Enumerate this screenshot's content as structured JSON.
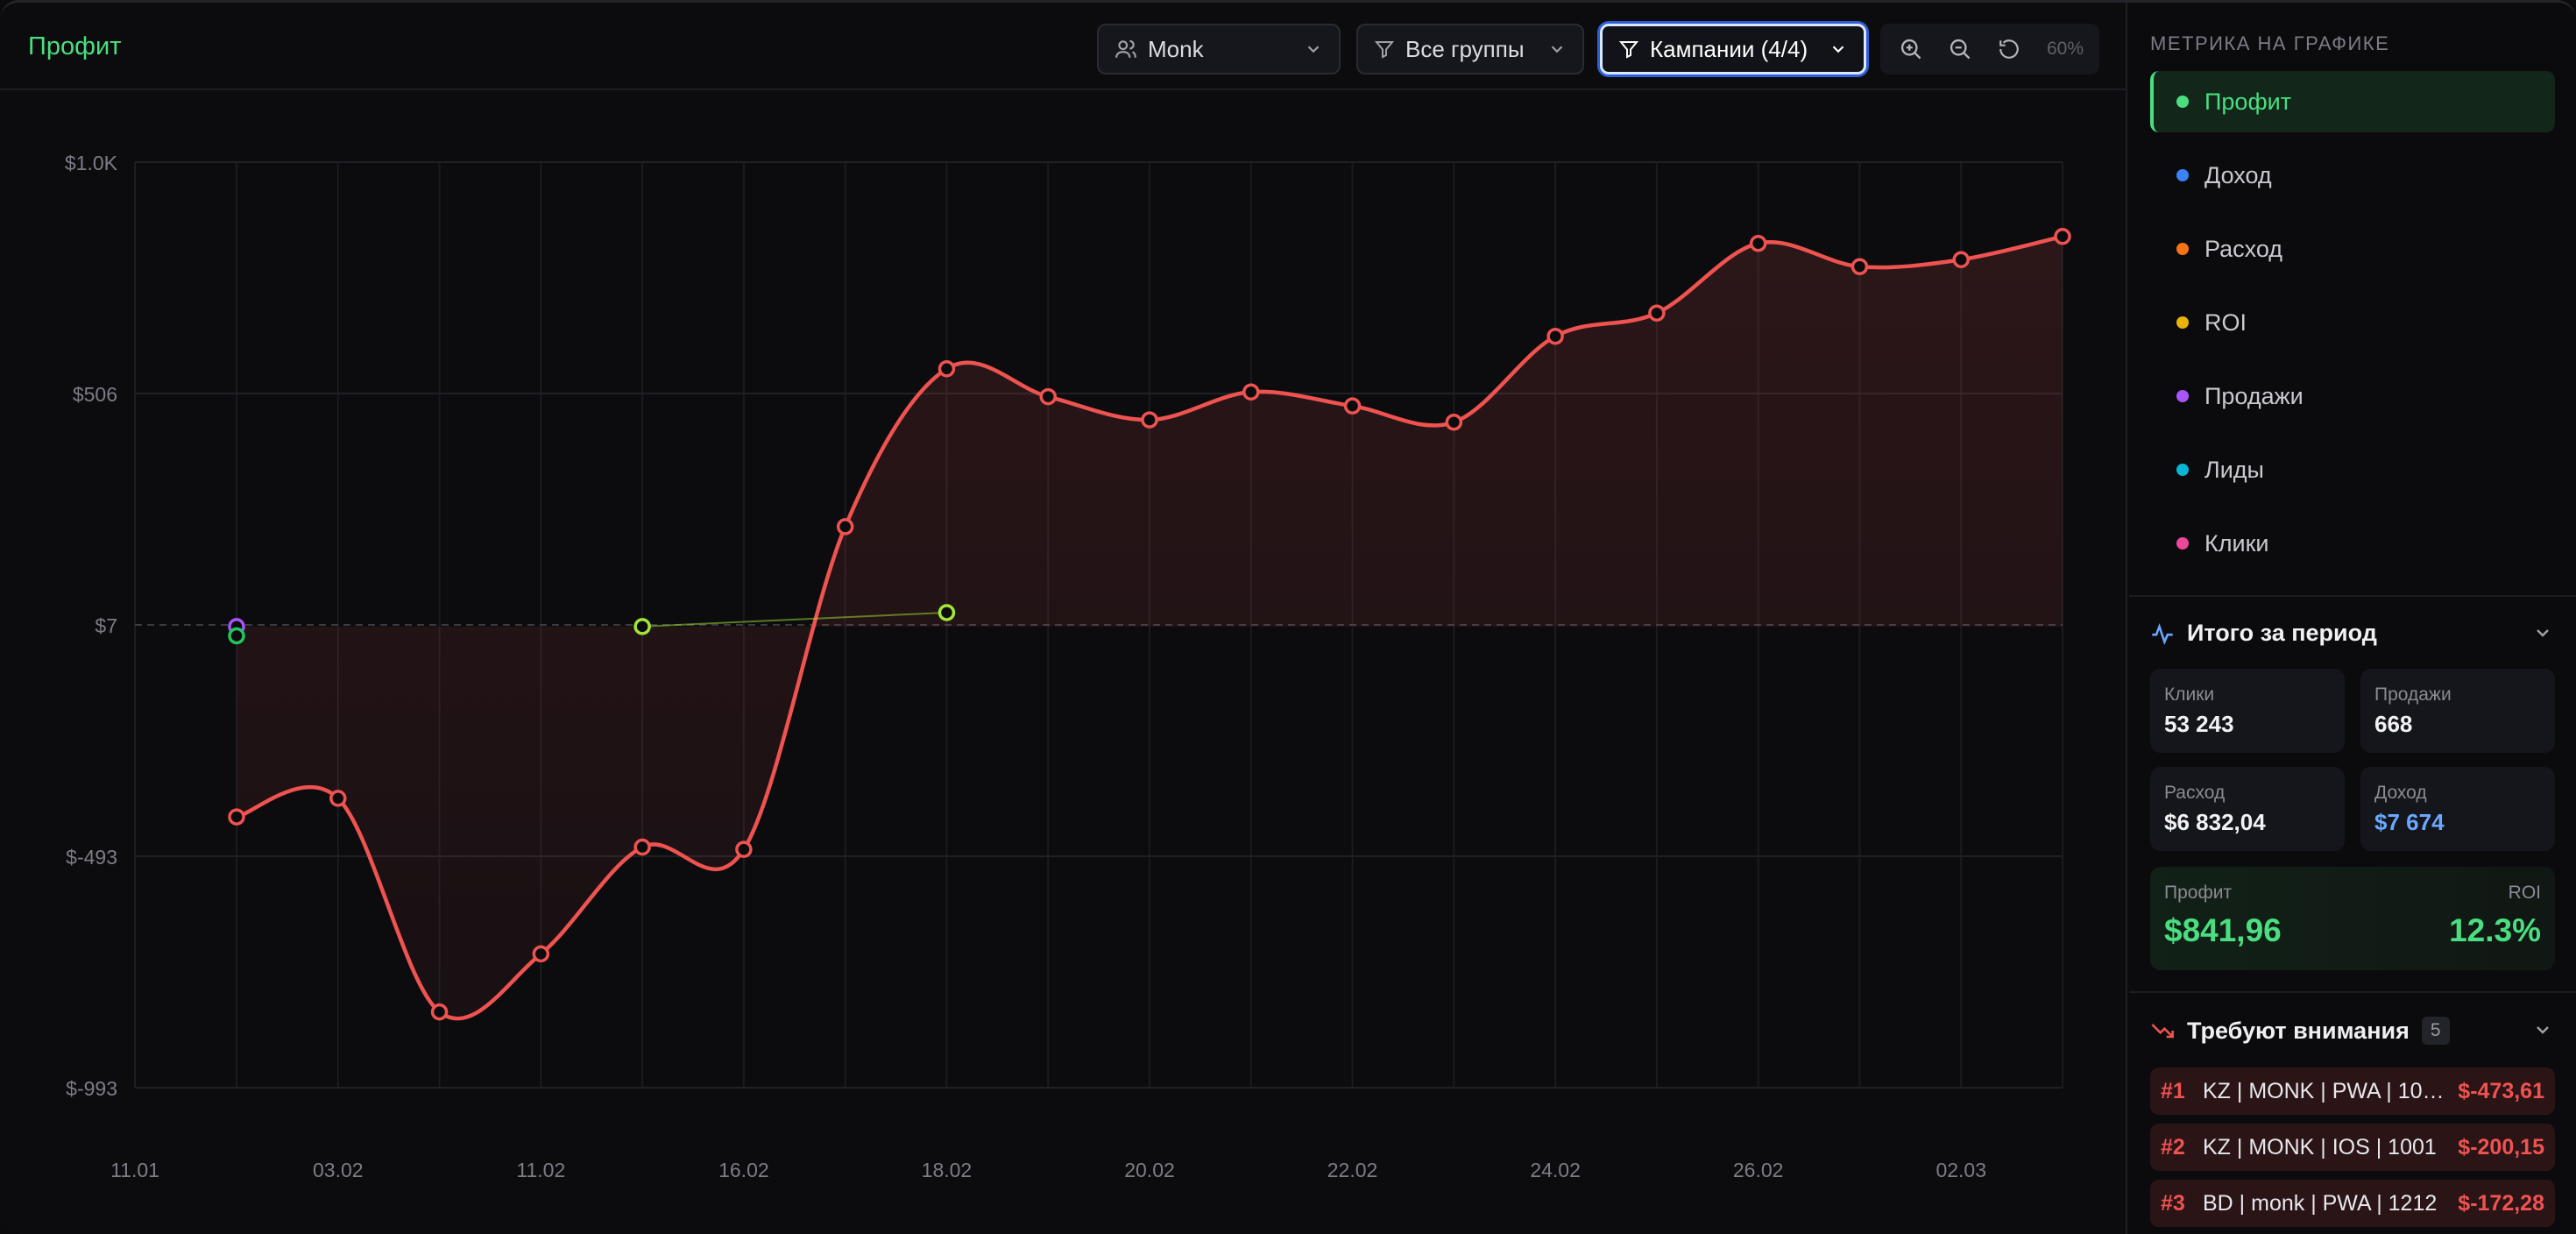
{
  "header": {
    "title": "Профит",
    "user_filter": "Monk",
    "group_filter": "Все группы",
    "campaign_filter": "Кампании (4/4)",
    "zoom_level": "60%"
  },
  "colors": {
    "profit": "#ef5350",
    "accent_green": "#4ade80",
    "blue": "#6aa8ff"
  },
  "chart_data": {
    "type": "line",
    "y_ticks": [
      "$1.0K",
      "$506",
      "$7",
      "$-493",
      "$-993"
    ],
    "x_ticks": [
      "11.01",
      "03.02",
      "11.02",
      "16.02",
      "18.02",
      "20.02",
      "22.02",
      "24.02",
      "26.02",
      "02.03"
    ],
    "ylim": [
      -993,
      1000
    ],
    "series": [
      {
        "color": "#ef5350",
        "values": [
          -410,
          -370,
          -830,
          -705,
          -475,
          -480,
          215,
          555,
          495,
          445,
          505,
          475,
          440,
          625,
          675,
          825,
          775,
          790,
          840
        ]
      },
      {
        "color": "#a3e635",
        "values": [
          null,
          null,
          null,
          null,
          0,
          null,
          null,
          30,
          null,
          null,
          null,
          null,
          null,
          null,
          null,
          null,
          null,
          null,
          null
        ]
      },
      {
        "color": "#a855f7",
        "values": [
          0,
          null,
          null,
          null,
          null,
          null,
          null,
          null,
          null,
          null,
          null,
          null,
          null,
          null,
          null,
          null,
          null,
          null,
          null
        ]
      },
      {
        "color": "#22c55e",
        "values": [
          -20,
          null,
          null,
          null,
          null,
          null,
          null,
          null,
          null,
          null,
          null,
          null,
          null,
          null,
          null,
          null,
          null,
          null,
          null
        ]
      }
    ]
  },
  "sidebar": {
    "metrics_heading": "МЕТРИКА НА ГРАФИКЕ",
    "metrics": [
      {
        "label": "Профит",
        "color": "#4ade80"
      },
      {
        "label": "Доход",
        "color": "#3b82f6"
      },
      {
        "label": "Расход",
        "color": "#f97316"
      },
      {
        "label": "ROI",
        "color": "#eab308"
      },
      {
        "label": "Продажи",
        "color": "#a855f7"
      },
      {
        "label": "Лиды",
        "color": "#06b6d4"
      },
      {
        "label": "Клики",
        "color": "#ec4899"
      }
    ],
    "totals": {
      "title": "Итого за период",
      "clicks_label": "Клики",
      "clicks_value": "53 243",
      "sales_label": "Продажи",
      "sales_value": "668",
      "cost_label": "Расход",
      "cost_value": "$6 832,04",
      "revenue_label": "Доход",
      "revenue_value": "$7 674",
      "profit_label": "Профит",
      "profit_value": "$841,96",
      "roi_label": "ROI",
      "roi_value": "12.3%"
    },
    "attention": {
      "title": "Требуют внимания",
      "count": "5",
      "items": [
        {
          "rank": "#1",
          "name": "KZ | MONK | PWA | 10…",
          "value": "$-473,61"
        },
        {
          "rank": "#2",
          "name": "KZ | MONK | IOS | 1001",
          "value": "$-200,15"
        },
        {
          "rank": "#3",
          "name": "BD | monk | PWA | 1212",
          "value": "$-172,28"
        }
      ]
    }
  }
}
